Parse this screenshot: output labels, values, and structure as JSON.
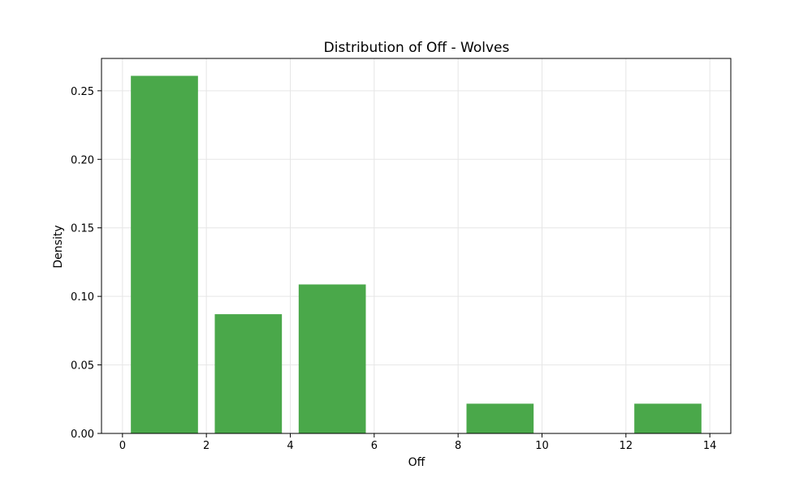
{
  "chart_data": {
    "type": "bar",
    "title": "Distribution of Off - Wolves",
    "xlabel": "Off",
    "ylabel": "Density",
    "bar_color": "#4aa84a",
    "grid": true,
    "xlim": [
      -0.5,
      14.5
    ],
    "ylim": [
      0,
      0.2736
    ],
    "x_ticks": [
      0,
      2,
      4,
      6,
      8,
      10,
      12,
      14
    ],
    "x_tick_labels": [
      "0",
      "2",
      "4",
      "6",
      "8",
      "10",
      "12",
      "14"
    ],
    "y_ticks": [
      0,
      0.05,
      0.1,
      0.15,
      0.2,
      0.25
    ],
    "y_tick_labels": [
      "0.00",
      "0.05",
      "0.10",
      "0.15",
      "0.20",
      "0.25"
    ],
    "bins": [
      {
        "x0": 0.2,
        "x1": 1.8,
        "value": 0.2609
      },
      {
        "x0": 2.2,
        "x1": 3.8,
        "value": 0.087
      },
      {
        "x0": 4.2,
        "x1": 5.8,
        "value": 0.1087
      },
      {
        "x0": 8.2,
        "x1": 9.8,
        "value": 0.0217
      },
      {
        "x0": 12.2,
        "x1": 13.8,
        "value": 0.0217
      }
    ]
  }
}
